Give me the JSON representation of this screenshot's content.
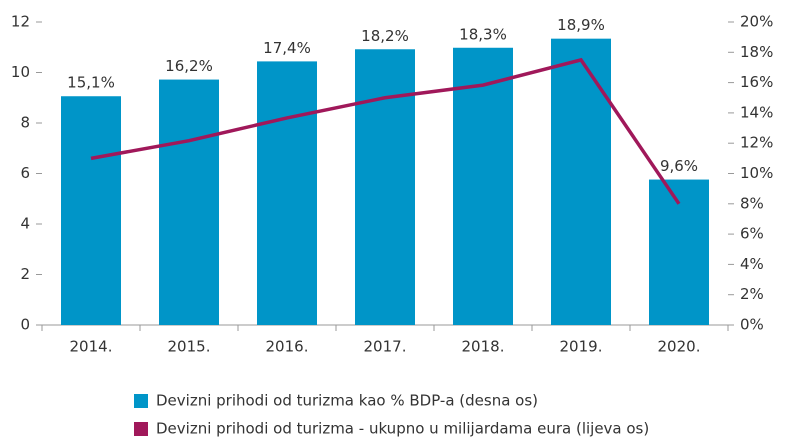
{
  "chart_data": {
    "type": "bar+line",
    "categories": [
      "2014.",
      "2015.",
      "2016.",
      "2017.",
      "2018.",
      "2019.",
      "2020."
    ],
    "series": [
      {
        "name": "Devizni prihodi od turizma kao % BDP-a (desna os)",
        "type": "bar",
        "axis": "y2",
        "color": "#0095c8",
        "values": [
          15.1,
          16.2,
          17.4,
          18.2,
          18.3,
          18.9,
          9.6
        ],
        "value_labels": [
          "15,1%",
          "16,2%",
          "17,4%",
          "18,2%",
          "18,3%",
          "18,9%",
          "9,6%"
        ]
      },
      {
        "name": "Devizni prihodi od turizma - ukupno u milijardama eura (lijeva os)",
        "type": "line",
        "axis": "y",
        "color": "#a0185a",
        "values": [
          6.6,
          7.3,
          8.2,
          9.0,
          9.5,
          10.5,
          4.8
        ]
      }
    ],
    "ylim": [
      0,
      12
    ],
    "yticks": [
      0,
      2,
      4,
      6,
      8,
      10,
      12
    ],
    "y2lim": [
      0,
      20
    ],
    "y2ticks": [
      {
        "value": 0,
        "label": "0%"
      },
      {
        "value": 2,
        "label": "2%"
      },
      {
        "value": 4,
        "label": "4%"
      },
      {
        "value": 6,
        "label": "6%"
      },
      {
        "value": 8,
        "label": "8%"
      },
      {
        "value": 10,
        "label": "10%"
      },
      {
        "value": 12,
        "label": "12%"
      },
      {
        "value": 14,
        "label": "14%"
      },
      {
        "value": 16,
        "label": "16%"
      },
      {
        "value": 18,
        "label": "18%"
      },
      {
        "value": 20,
        "label": "20%"
      }
    ],
    "legend": "bottom"
  }
}
